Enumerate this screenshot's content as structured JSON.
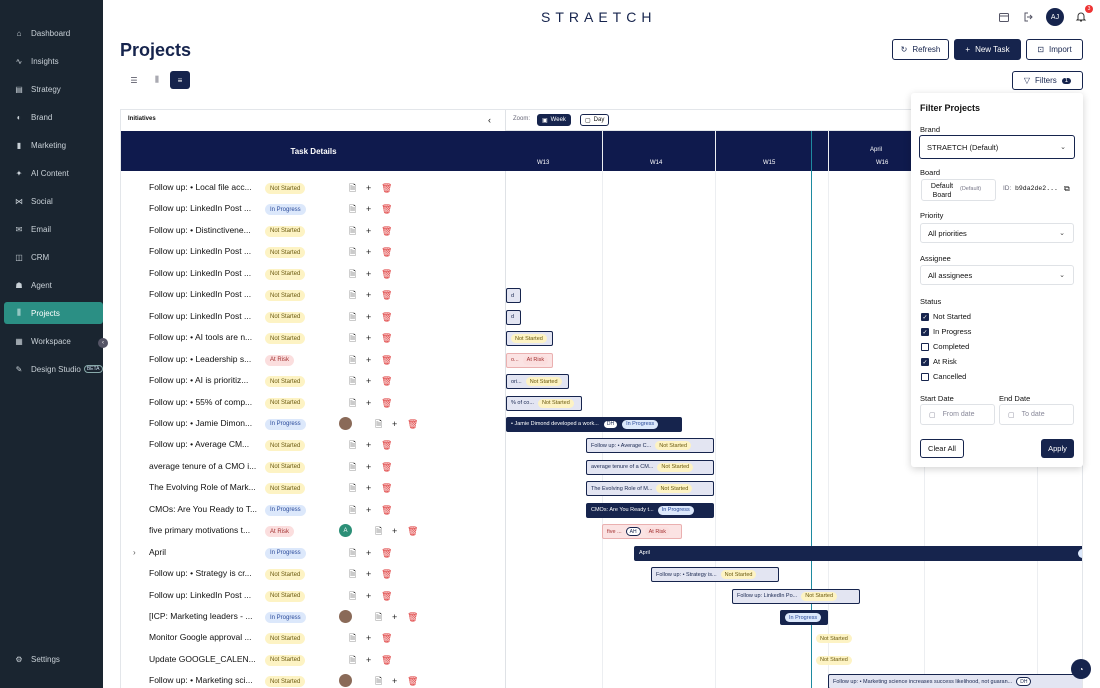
{
  "app": {
    "logo": "STRAETCH",
    "avatar_initials": "AJ",
    "notification_count": "3"
  },
  "sidebar": {
    "items": [
      {
        "label": "Dashboard",
        "icon": "home-icon"
      },
      {
        "label": "Insights",
        "icon": "chart-line-icon"
      },
      {
        "label": "Strategy",
        "icon": "document-icon"
      },
      {
        "label": "Brand",
        "icon": "palette-icon"
      },
      {
        "label": "Marketing",
        "icon": "bar-chart-icon"
      },
      {
        "label": "AI Content",
        "icon": "sparkle-icon"
      },
      {
        "label": "Social",
        "icon": "share-icon"
      },
      {
        "label": "Email",
        "icon": "mail-icon"
      },
      {
        "label": "CRM",
        "icon": "database-icon"
      },
      {
        "label": "Agent",
        "icon": "robot-icon"
      },
      {
        "label": "Projects",
        "icon": "kanban-icon"
      },
      {
        "label": "Workspace",
        "icon": "grid-icon"
      },
      {
        "label": "Design Studio",
        "icon": "pen-icon",
        "badge": "BETA"
      }
    ],
    "active": "Projects",
    "settings_label": "Settings"
  },
  "page": {
    "title": "Projects"
  },
  "toolbar": {
    "refresh": "Refresh",
    "new_task": "New Task",
    "import": "Import",
    "filters": "Filters",
    "filters_count": "1"
  },
  "left_panel": {
    "initiatives_label": "Initiatives",
    "task_details_header": "Task Details"
  },
  "tasks": [
    {
      "name": "Follow up: • Local file acc...",
      "status": "Not Started",
      "kind": "ns"
    },
    {
      "name": "Follow up: LinkedIn Post ...",
      "status": "In Progress",
      "kind": "ip"
    },
    {
      "name": "Follow up: • Distinctivene...",
      "status": "Not Started",
      "kind": "ns"
    },
    {
      "name": "Follow up: LinkedIn Post ...",
      "status": "Not Started",
      "kind": "ns"
    },
    {
      "name": "Follow up: LinkedIn Post ...",
      "status": "Not Started",
      "kind": "ns"
    },
    {
      "name": "Follow up: LinkedIn Post ...",
      "status": "Not Started",
      "kind": "ns"
    },
    {
      "name": "Follow up: LinkedIn Post ...",
      "status": "Not Started",
      "kind": "ns"
    },
    {
      "name": "Follow up: • AI tools are n...",
      "status": "Not Started",
      "kind": "ns"
    },
    {
      "name": "Follow up: • Leadership s...",
      "status": "At Risk",
      "kind": "ar"
    },
    {
      "name": "Follow up: • AI is prioritiz...",
      "status": "Not Started",
      "kind": "ns"
    },
    {
      "name": "Follow up: • 55% of comp...",
      "status": "Not Started",
      "kind": "ns"
    },
    {
      "name": "Follow up: • Jamie Dimon...",
      "status": "In Progress",
      "kind": "ip",
      "avatar": "photo"
    },
    {
      "name": "Follow up: • Average CM...",
      "status": "Not Started",
      "kind": "ns"
    },
    {
      "name": "average tenure of a CMO i...",
      "status": "Not Started",
      "kind": "ns"
    },
    {
      "name": "The Evolving Role of Mark...",
      "status": "Not Started",
      "kind": "ns"
    },
    {
      "name": "CMOs: Are You Ready to T...",
      "status": "In Progress",
      "kind": "ip"
    },
    {
      "name": "five primary motivations t...",
      "status": "At Risk",
      "kind": "ar",
      "avatar": "A"
    },
    {
      "name": "April",
      "status": "In Progress",
      "kind": "ip",
      "group": true
    },
    {
      "name": "Follow up: • Strategy is cr...",
      "status": "Not Started",
      "kind": "ns"
    },
    {
      "name": "Follow up: LinkedIn Post ...",
      "status": "Not Started",
      "kind": "ns"
    },
    {
      "name": "[ICP: Marketing leaders - ...",
      "status": "In Progress",
      "kind": "ip",
      "avatar": "photo"
    },
    {
      "name": "Monitor Google approval ...",
      "status": "Not Started",
      "kind": "ns"
    },
    {
      "name": "Update GOOGLE_CALEN...",
      "status": "Not Started",
      "kind": "ns"
    },
    {
      "name": "Follow up: • Marketing sci...",
      "status": "Not Started",
      "kind": "ns",
      "avatar": "photo"
    }
  ],
  "gantt": {
    "zoom_label": "Zoom:",
    "zoom_week": "Week",
    "zoom_day": "Day",
    "month": "April",
    "weeks": [
      "W13",
      "W14",
      "W15",
      "W16"
    ],
    "bars": [
      {
        "text": "d",
        "status": "",
        "style": "light"
      },
      {
        "text": "d",
        "status": "",
        "style": "light"
      },
      {
        "text": "",
        "status": "Not Started",
        "style": "light"
      },
      {
        "text": "o...",
        "status": "At Risk",
        "style": "risk"
      },
      {
        "text": "ori...",
        "status": "Not Started",
        "style": "light"
      },
      {
        "text": "% of co...",
        "status": "Not Started",
        "style": "light"
      },
      {
        "text": "• Jamie Dimond developed a work...",
        "initials": "DH",
        "status": "In Progress",
        "style": "dark"
      },
      {
        "text": "Follow up: • Average C...",
        "status": "Not Started",
        "style": "light"
      },
      {
        "text": "average tenure of a CM...",
        "status": "Not Started",
        "style": "light"
      },
      {
        "text": "The Evolving Role of M...",
        "status": "Not Started",
        "style": "light"
      },
      {
        "text": "CMOs: Are You Ready t...",
        "status": "In Progress",
        "style": "dark"
      },
      {
        "text": "five ...",
        "initials": "AH",
        "status": "At Risk",
        "style": "risk"
      },
      {
        "text": "April",
        "status": "In",
        "style": "dark"
      },
      {
        "text": "Follow up: • Strategy is...",
        "status": "Not Started",
        "style": "light"
      },
      {
        "text": "Follow up: LinkedIn Po...",
        "status": "Not Started",
        "style": "light"
      },
      {
        "text": "",
        "status": "In Progress",
        "style": "dark"
      },
      {
        "text": "",
        "status": "Not Started",
        "style": "none"
      },
      {
        "text": "",
        "status": "Not Started",
        "style": "none"
      },
      {
        "text": "Follow up: • Marketing science increases success likelihood, not guaran...",
        "initials": "DH",
        "status": "",
        "style": "light"
      }
    ]
  },
  "filter_panel": {
    "title": "Filter Projects",
    "brand_label": "Brand",
    "brand_value": "STRAETCH (Default)",
    "board_label": "Board",
    "board_value": "Default Board",
    "board_default": "(Default)",
    "board_id_label": "ID:",
    "board_id": "b9da2de2...",
    "priority_label": "Priority",
    "priority_value": "All priorities",
    "assignee_label": "Assignee",
    "assignee_value": "All assignees",
    "status_label": "Status",
    "statuses": [
      {
        "label": "Not Started",
        "checked": true
      },
      {
        "label": "In Progress",
        "checked": true
      },
      {
        "label": "Completed",
        "checked": false
      },
      {
        "label": "At Risk",
        "checked": true
      },
      {
        "label": "Cancelled",
        "checked": false
      }
    ],
    "start_label": "Start Date",
    "end_label": "End Date",
    "from_placeholder": "From date",
    "to_placeholder": "To date",
    "clear_all": "Clear All",
    "apply": "Apply"
  }
}
